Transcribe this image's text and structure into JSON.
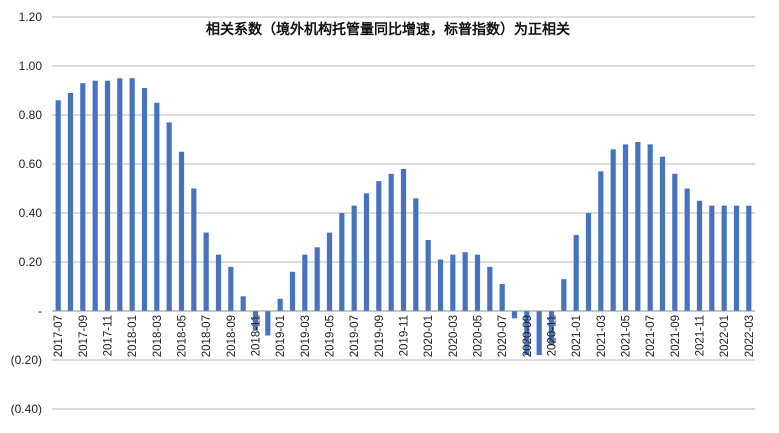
{
  "chart_data": {
    "type": "bar",
    "title": "相关系数（境外机构托管量同比增速，标普指数）为正相关",
    "xlabel": "",
    "ylabel": "",
    "ylim": [
      -0.4,
      1.2
    ],
    "y_ticks": [
      1.2,
      1.0,
      0.8,
      0.6,
      0.4,
      0.2,
      0,
      -0.2,
      -0.4
    ],
    "y_tick_labels": [
      "1.20",
      "1.00",
      "0.80",
      "0.60",
      "0.40",
      "0.20",
      "-",
      "(0.20)",
      "(0.40)"
    ],
    "grid": true,
    "legend": "none",
    "bar_color": "#4472C4",
    "categories": [
      "2017-07",
      "2017-08",
      "2017-09",
      "2017-10",
      "2017-11",
      "2017-12",
      "2018-01",
      "2018-02",
      "2018-03",
      "2018-04",
      "2018-05",
      "2018-06",
      "2018-07",
      "2018-08",
      "2018-09",
      "2018-10",
      "2018-11",
      "2018-12",
      "2019-01",
      "2019-02",
      "2019-03",
      "2019-04",
      "2019-05",
      "2019-06",
      "2019-07",
      "2019-08",
      "2019-09",
      "2019-10",
      "2019-11",
      "2019-12",
      "2020-01",
      "2020-02",
      "2020-03",
      "2020-04",
      "2020-05",
      "2020-06",
      "2020-07",
      "2020-08",
      "2020-09",
      "2020-10",
      "2020-11",
      "2020-12",
      "2021-01",
      "2021-02",
      "2021-03",
      "2021-04",
      "2021-05",
      "2021-06",
      "2021-07",
      "2021-08",
      "2021-09",
      "2021-10",
      "2021-11",
      "2021-12",
      "2022-01",
      "2022-02",
      "2022-03"
    ],
    "x_tick_labels": [
      "2017-07",
      "2017-09",
      "2017-11",
      "2018-01",
      "2018-03",
      "2018-05",
      "2018-07",
      "2018-09",
      "2018-11",
      "2019-01",
      "2019-03",
      "2019-05",
      "2019-07",
      "2019-09",
      "2019-11",
      "2020-01",
      "2020-03",
      "2020-05",
      "2020-07",
      "2020-09",
      "2020-11",
      "2021-01",
      "2021-03",
      "2021-05",
      "2021-07",
      "2021-09",
      "2021-11",
      "2022-01",
      "2022-03"
    ],
    "values": [
      0.86,
      0.89,
      0.93,
      0.94,
      0.94,
      0.95,
      0.95,
      0.91,
      0.85,
      0.77,
      0.65,
      0.5,
      0.32,
      0.23,
      0.18,
      0.06,
      -0.08,
      -0.1,
      0.05,
      0.16,
      0.23,
      0.26,
      0.32,
      0.4,
      0.43,
      0.48,
      0.53,
      0.56,
      0.58,
      0.46,
      0.29,
      0.21,
      0.23,
      0.24,
      0.23,
      0.18,
      0.11,
      -0.03,
      -0.18,
      -0.18,
      -0.14,
      0.13,
      0.31,
      0.4,
      0.57,
      0.66,
      0.68,
      0.69,
      0.68,
      0.63,
      0.56,
      0.5,
      0.45,
      0.43,
      0.43,
      0.43,
      0.43
    ]
  }
}
